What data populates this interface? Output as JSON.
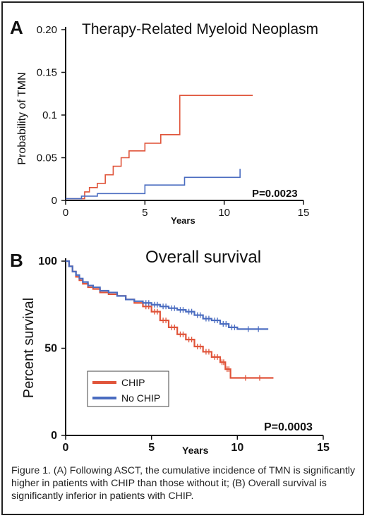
{
  "caption": "Figure 1. (A) Following ASCT, the cumulative incidence of TMN is significantly higher in patients with CHIP than those without it; (B) Overall survival is significantly inferior in patients with CHIP.",
  "colors": {
    "chip": "#e0543a",
    "no_chip": "#4a6cc0",
    "axis": "#111111"
  },
  "chart_data": [
    {
      "type": "line",
      "panel_label": "A",
      "title": "Therapy-Related Myeloid Neoplasm",
      "xlabel": "Years",
      "ylabel": "Probability of TMN",
      "xlim": [
        0,
        15
      ],
      "ylim": [
        0,
        0.2
      ],
      "x_ticks": [
        "0",
        "5",
        "10",
        "15"
      ],
      "y_ticks": [
        "0",
        "0.05",
        "0.1",
        "0.15",
        "0.20"
      ],
      "annotation": "P=0.0023",
      "grid": false,
      "step": true,
      "series": [
        {
          "key": "chip",
          "x": [
            0,
            1.2,
            1.5,
            2.0,
            2.5,
            3.0,
            3.5,
            4.0,
            5.0,
            6.0,
            7.2,
            11.8
          ],
          "y": [
            0.002,
            0.01,
            0.015,
            0.02,
            0.03,
            0.04,
            0.05,
            0.058,
            0.067,
            0.077,
            0.123,
            0.123
          ]
        },
        {
          "key": "no_chip",
          "x": [
            0,
            1.0,
            2.0,
            5.0,
            7.5,
            11.0
          ],
          "y": [
            0.002,
            0.005,
            0.008,
            0.018,
            0.027,
            0.037
          ]
        }
      ]
    },
    {
      "type": "line",
      "panel_label": "B",
      "title": "Overall survival",
      "xlabel": "Years",
      "ylabel": "Percent survival",
      "xlim": [
        0,
        15
      ],
      "ylim": [
        0,
        100
      ],
      "x_ticks": [
        "0",
        "5",
        "10",
        "15"
      ],
      "y_ticks": [
        "0",
        "50",
        "100"
      ],
      "annotation": "P=0.0003",
      "grid": false,
      "step": true,
      "legend": {
        "position": "lower-left",
        "entries": [
          "CHIP",
          "No CHIP"
        ]
      },
      "series": [
        {
          "name": "CHIP",
          "key": "chip",
          "x": [
            0,
            0.2,
            0.4,
            0.6,
            0.8,
            1.0,
            1.3,
            1.6,
            2.0,
            2.5,
            3.0,
            3.5,
            4.0,
            4.5,
            5.0,
            5.5,
            6.0,
            6.5,
            7.0,
            7.5,
            8.0,
            8.5,
            9.0,
            9.3,
            9.6,
            12.1
          ],
          "y": [
            100,
            97,
            94,
            91,
            89,
            87,
            85,
            84,
            82,
            81,
            80,
            78,
            76,
            74,
            71,
            66,
            62,
            58,
            55,
            51,
            48,
            45,
            42,
            38,
            33,
            33
          ]
        },
        {
          "name": "No CHIP",
          "key": "no_chip",
          "x": [
            0,
            0.2,
            0.4,
            0.6,
            0.8,
            1.0,
            1.3,
            1.6,
            2.0,
            2.5,
            3.0,
            3.5,
            4.0,
            4.5,
            5.0,
            5.5,
            6.0,
            6.5,
            7.0,
            7.5,
            8.0,
            8.5,
            9.0,
            9.5,
            10.0,
            11.8
          ],
          "y": [
            100,
            97,
            94,
            92,
            90,
            88,
            86,
            85,
            83,
            82,
            80,
            78,
            77,
            76,
            75,
            74,
            73,
            72,
            71,
            69,
            67,
            66,
            64,
            62,
            61,
            61
          ]
        }
      ]
    }
  ]
}
